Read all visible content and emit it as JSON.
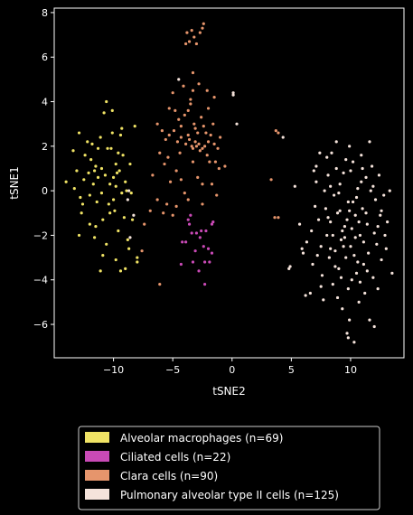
{
  "chart_data": {
    "type": "scatter",
    "title": "",
    "xlabel": "tSNE2",
    "ylabel": "tSNE1",
    "xlim": [
      -15,
      14.5
    ],
    "ylim": [
      -7.5,
      8.2
    ],
    "xticks": [
      -10,
      -5,
      0,
      5,
      10
    ],
    "yticks": [
      -6,
      -4,
      -2,
      0,
      2,
      4,
      6,
      8
    ],
    "xtick_labels": [
      "−10",
      "−5",
      "0",
      "5",
      "10"
    ],
    "ytick_labels": [
      "−6",
      "−4",
      "−2",
      "0",
      "2",
      "4",
      "6",
      "8"
    ],
    "grid": false,
    "legend_position": "below",
    "background": "#000000",
    "series": [
      {
        "name": "Alveolar macrophages (n=69)",
        "color": "#f0e365",
        "points": [
          [
            -14.0,
            0.4
          ],
          [
            -13.4,
            1.8
          ],
          [
            -13.1,
            0.9
          ],
          [
            -12.9,
            2.6
          ],
          [
            -12.8,
            -0.3
          ],
          [
            -12.7,
            -1.0
          ],
          [
            -12.5,
            0.5
          ],
          [
            -12.2,
            2.2
          ],
          [
            -12.0,
            -0.2
          ],
          [
            -11.9,
            1.4
          ],
          [
            -11.6,
            0.9
          ],
          [
            -11.5,
            1.1
          ],
          [
            -11.4,
            -0.5
          ],
          [
            -11.3,
            0.6
          ],
          [
            -11.1,
            2.4
          ],
          [
            -11.0,
            1.0
          ],
          [
            -10.9,
            -1.3
          ],
          [
            -10.8,
            3.5
          ],
          [
            -10.7,
            0.7
          ],
          [
            -10.6,
            4.0
          ],
          [
            -10.5,
            1.9
          ],
          [
            -10.4,
            -0.6
          ],
          [
            -10.3,
            0.3
          ],
          [
            -10.2,
            1.9
          ],
          [
            -10.1,
            3.6
          ],
          [
            -10.0,
            0.6
          ],
          [
            -9.9,
            -0.9
          ],
          [
            -9.8,
            1.2
          ],
          [
            -9.8,
            0.2
          ],
          [
            -9.6,
            -1.8
          ],
          [
            -9.5,
            0.9
          ],
          [
            -9.4,
            2.5
          ],
          [
            -9.3,
            -0.1
          ],
          [
            -9.2,
            1.6
          ],
          [
            -9.1,
            -1.2
          ],
          [
            -9.0,
            0.4
          ],
          [
            -10.9,
            -2.9
          ],
          [
            -11.1,
            -3.6
          ],
          [
            -11.6,
            -2.1
          ],
          [
            -12.0,
            -1.5
          ],
          [
            -11.5,
            -1.6
          ],
          [
            -10.6,
            -2.4
          ],
          [
            -10.0,
            -0.4
          ],
          [
            -9.8,
            -3.1
          ],
          [
            -9.7,
            0.8
          ],
          [
            -9.4,
            -3.6
          ],
          [
            -8.6,
            1.2
          ],
          [
            -8.5,
            -0.1
          ],
          [
            -8.4,
            -1.3
          ],
          [
            -8.2,
            2.9
          ],
          [
            -8.0,
            -3.2
          ],
          [
            -8.8,
            -2.2
          ],
          [
            -9.0,
            -3.5
          ],
          [
            -8.7,
            -2.6
          ],
          [
            -8.0,
            -3.0
          ],
          [
            -12.4,
            1.6
          ],
          [
            -11.8,
            2.1
          ],
          [
            -13.3,
            0.1
          ],
          [
            -11.0,
            -0.1
          ],
          [
            -12.9,
            -2.0
          ],
          [
            -11.3,
            1.9
          ],
          [
            -10.3,
            -1.0
          ],
          [
            -9.6,
            1.7
          ],
          [
            -10.1,
            2.6
          ],
          [
            -12.1,
            0.8
          ],
          [
            -8.9,
            0.0
          ],
          [
            -9.3,
            2.8
          ],
          [
            -11.7,
            0.3
          ],
          [
            -12.6,
            -0.6
          ]
        ]
      },
      {
        "name": "Ciliated cells (n=22)",
        "color": "#c94ab6",
        "points": [
          [
            -3.7,
            -1.3
          ],
          [
            -3.4,
            -1.9
          ],
          [
            -3.0,
            -1.9
          ],
          [
            -2.6,
            -1.8
          ],
          [
            -2.2,
            -1.8
          ],
          [
            -1.7,
            -1.5
          ],
          [
            -1.6,
            -1.4
          ],
          [
            -2.0,
            -2.6
          ],
          [
            -2.4,
            -2.5
          ],
          [
            -3.9,
            -2.3
          ],
          [
            -4.2,
            -2.3
          ],
          [
            -3.6,
            -1.5
          ],
          [
            -3.3,
            -3.2
          ],
          [
            -2.8,
            -3.6
          ],
          [
            -2.3,
            -3.2
          ],
          [
            -1.9,
            -3.2
          ],
          [
            -1.7,
            -2.8
          ],
          [
            -2.7,
            -2.1
          ],
          [
            -4.3,
            -3.3
          ],
          [
            -3.5,
            -1.1
          ],
          [
            -2.3,
            -4.2
          ],
          [
            -3.1,
            -2.7
          ]
        ]
      },
      {
        "name": "Clara cells (n=90)",
        "color": "#e6956c",
        "points": [
          [
            -3.8,
            7.1
          ],
          [
            -3.6,
            6.7
          ],
          [
            -3.2,
            6.9
          ],
          [
            -3.0,
            6.6
          ],
          [
            -2.7,
            7.1
          ],
          [
            -2.5,
            7.3
          ],
          [
            -2.4,
            7.5
          ],
          [
            -3.4,
            7.2
          ],
          [
            -3.9,
            6.6
          ],
          [
            -3.3,
            5.3
          ],
          [
            -3.3,
            4.5
          ],
          [
            -4.1,
            4.7
          ],
          [
            -2.8,
            4.8
          ],
          [
            -2.1,
            4.5
          ],
          [
            -1.5,
            4.2
          ],
          [
            -5.0,
            4.4
          ],
          [
            -5.3,
            3.7
          ],
          [
            -4.8,
            3.6
          ],
          [
            -4.5,
            3.2
          ],
          [
            -4.3,
            2.9
          ],
          [
            -4.0,
            3.4
          ],
          [
            -3.7,
            3.6
          ],
          [
            -3.5,
            3.9
          ],
          [
            -3.2,
            3.0
          ],
          [
            -3.1,
            2.8
          ],
          [
            -2.9,
            2.6
          ],
          [
            -2.6,
            3.3
          ],
          [
            -2.4,
            2.9
          ],
          [
            -2.2,
            2.6
          ],
          [
            -2.0,
            2.2
          ],
          [
            -1.8,
            2.5
          ],
          [
            -1.6,
            3.0
          ],
          [
            -1.5,
            2.1
          ],
          [
            -1.4,
            1.3
          ],
          [
            -1.2,
            1.9
          ],
          [
            -1.0,
            2.4
          ],
          [
            -1.1,
            1.0
          ],
          [
            -3.7,
            2.5
          ],
          [
            -3.9,
            2.1
          ],
          [
            -3.6,
            2.3
          ],
          [
            -3.4,
            2.0
          ],
          [
            -3.3,
            1.9
          ],
          [
            -3.1,
            2.2
          ],
          [
            -3.0,
            2.0
          ],
          [
            -2.8,
            2.1
          ],
          [
            -2.7,
            1.8
          ],
          [
            -2.5,
            1.9
          ],
          [
            -2.3,
            2.0
          ],
          [
            -4.3,
            2.4
          ],
          [
            -4.6,
            2.2
          ],
          [
            -4.9,
            2.7
          ],
          [
            -5.3,
            2.5
          ],
          [
            -5.6,
            2.3
          ],
          [
            -5.9,
            2.7
          ],
          [
            -6.3,
            3.0
          ],
          [
            -6.1,
            1.7
          ],
          [
            -5.7,
            1.2
          ],
          [
            -5.4,
            1.5
          ],
          [
            -4.7,
            0.9
          ],
          [
            -4.3,
            0.5
          ],
          [
            -4.0,
            -0.1
          ],
          [
            -3.7,
            -0.4
          ],
          [
            -3.3,
            1.3
          ],
          [
            -2.9,
            0.6
          ],
          [
            -2.5,
            0.3
          ],
          [
            -2.1,
            1.6
          ],
          [
            -1.7,
            0.3
          ],
          [
            -1.3,
            -0.2
          ],
          [
            -5.2,
            0.4
          ],
          [
            -5.5,
            -0.6
          ],
          [
            -5.8,
            -1.0
          ],
          [
            -6.3,
            -0.4
          ],
          [
            -6.7,
            0.7
          ],
          [
            -6.9,
            -0.9
          ],
          [
            -7.4,
            -1.5
          ],
          [
            -7.6,
            -2.7
          ],
          [
            -5.0,
            -1.1
          ],
          [
            -4.7,
            -0.7
          ],
          [
            -6.1,
            -4.2
          ],
          [
            -2.5,
            -0.6
          ],
          [
            -2.0,
            3.7
          ],
          [
            -4.4,
            1.7
          ],
          [
            -3.5,
            4.1
          ],
          [
            -1.9,
            1.3
          ],
          [
            3.3,
            0.5
          ],
          [
            3.7,
            2.7
          ],
          [
            3.9,
            2.6
          ],
          [
            3.6,
            -1.2
          ],
          [
            3.9,
            -1.2
          ],
          [
            -0.6,
            1.1
          ]
        ]
      },
      {
        "name": "Pulmonary alveolar type II cells (n=125)",
        "color": "#f5e3db",
        "points": [
          [
            -4.5,
            5.0
          ],
          [
            0.1,
            4.3
          ],
          [
            0.1,
            4.4
          ],
          [
            0.4,
            3.0
          ],
          [
            -8.7,
            0.0
          ],
          [
            -8.8,
            -0.4
          ],
          [
            -8.3,
            -1.1
          ],
          [
            -8.6,
            -2.1
          ],
          [
            4.3,
            2.4
          ],
          [
            5.3,
            0.2
          ],
          [
            4.9,
            -3.4
          ],
          [
            4.8,
            -3.5
          ],
          [
            5.7,
            -1.5
          ],
          [
            5.9,
            -2.6
          ],
          [
            6.0,
            -2.8
          ],
          [
            6.2,
            -4.7
          ],
          [
            6.6,
            -4.6
          ],
          [
            6.7,
            -1.8
          ],
          [
            6.8,
            -3.3
          ],
          [
            7.0,
            -0.7
          ],
          [
            7.1,
            0.4
          ],
          [
            7.1,
            1.1
          ],
          [
            7.3,
            -1.3
          ],
          [
            7.5,
            -2.5
          ],
          [
            7.6,
            -3.8
          ],
          [
            7.7,
            -4.9
          ],
          [
            7.8,
            0.0
          ],
          [
            7.9,
            -0.8
          ],
          [
            8.0,
            -2.0
          ],
          [
            8.1,
            0.7
          ],
          [
            8.2,
            -3.0
          ],
          [
            8.3,
            -1.4
          ],
          [
            8.4,
            1.7
          ],
          [
            8.5,
            -4.2
          ],
          [
            8.6,
            -0.2
          ],
          [
            8.7,
            -2.7
          ],
          [
            8.8,
            1.0
          ],
          [
            8.9,
            -1.0
          ],
          [
            9.0,
            -3.5
          ],
          [
            9.1,
            0.3
          ],
          [
            9.2,
            -2.2
          ],
          [
            9.3,
            -5.3
          ],
          [
            9.4,
            0.8
          ],
          [
            9.5,
            -1.6
          ],
          [
            9.6,
            -3.0
          ],
          [
            9.7,
            -6.4
          ],
          [
            9.8,
            -0.5
          ],
          [
            9.9,
            2.0
          ],
          [
            10.0,
            -2.5
          ],
          [
            10.1,
            -4.0
          ],
          [
            10.2,
            1.3
          ],
          [
            10.3,
            -6.8
          ],
          [
            10.4,
            -1.1
          ],
          [
            10.5,
            -3.7
          ],
          [
            10.6,
            0.1
          ],
          [
            10.7,
            -5.0
          ],
          [
            10.8,
            -2.0
          ],
          [
            10.9,
            1.6
          ],
          [
            11.0,
            -0.8
          ],
          [
            11.1,
            -3.3
          ],
          [
            11.2,
            -4.6
          ],
          [
            11.3,
            0.6
          ],
          [
            11.4,
            -1.5
          ],
          [
            11.5,
            -2.8
          ],
          [
            11.6,
            -5.8
          ],
          [
            11.7,
            0.0
          ],
          [
            11.8,
            1.1
          ],
          [
            11.9,
            -3.9
          ],
          [
            12.0,
            -1.9
          ],
          [
            12.1,
            -0.4
          ],
          [
            12.2,
            -2.4
          ],
          [
            12.3,
            -4.4
          ],
          [
            12.4,
            0.7
          ],
          [
            12.5,
            -1.1
          ],
          [
            12.6,
            -3.1
          ],
          [
            12.8,
            -0.2
          ],
          [
            12.9,
            -2.0
          ],
          [
            13.1,
            -1.4
          ],
          [
            13.3,
            0.0
          ],
          [
            13.5,
            -3.7
          ],
          [
            9.3,
            -1.8
          ],
          [
            9.5,
            -2.1
          ],
          [
            9.7,
            -1.3
          ],
          [
            9.9,
            -0.9
          ],
          [
            10.1,
            -1.7
          ],
          [
            10.3,
            -2.9
          ],
          [
            10.5,
            -0.3
          ],
          [
            9.2,
            -3.9
          ],
          [
            8.5,
            -2.0
          ],
          [
            8.3,
            -2.6
          ],
          [
            10.8,
            -4.1
          ],
          [
            11.1,
            -2.3
          ],
          [
            10.9,
            0.4
          ],
          [
            8.0,
            1.5
          ],
          [
            7.4,
            1.7
          ],
          [
            9.6,
            1.4
          ],
          [
            11.6,
            2.2
          ],
          [
            8.8,
            2.2
          ],
          [
            12.0,
            -6.1
          ],
          [
            9.9,
            -5.8
          ],
          [
            7.2,
            -2.9
          ],
          [
            9.8,
            -4.4
          ],
          [
            10.6,
            -3.2
          ],
          [
            11.3,
            -1.0
          ],
          [
            12.6,
            -0.9
          ],
          [
            7.5,
            -4.3
          ],
          [
            6.3,
            -2.3
          ],
          [
            8.9,
            -4.8
          ],
          [
            10.2,
            -0.5
          ],
          [
            9.0,
            -0.1
          ],
          [
            11.9,
            0.2
          ],
          [
            8.3,
            0.2
          ],
          [
            10.7,
            -1.4
          ],
          [
            9.4,
            -2.5
          ],
          [
            10.0,
            0.9
          ],
          [
            11.4,
            -3.6
          ],
          [
            8.7,
            -3.4
          ],
          [
            12.3,
            -1.6
          ],
          [
            6.9,
            0.9
          ],
          [
            9.8,
            -6.6
          ],
          [
            10.4,
            -2.1
          ],
          [
            8.1,
            -1.2
          ],
          [
            11.0,
            1.0
          ],
          [
            9.1,
            -0.9
          ],
          [
            13.0,
            -2.6
          ]
        ]
      }
    ]
  }
}
